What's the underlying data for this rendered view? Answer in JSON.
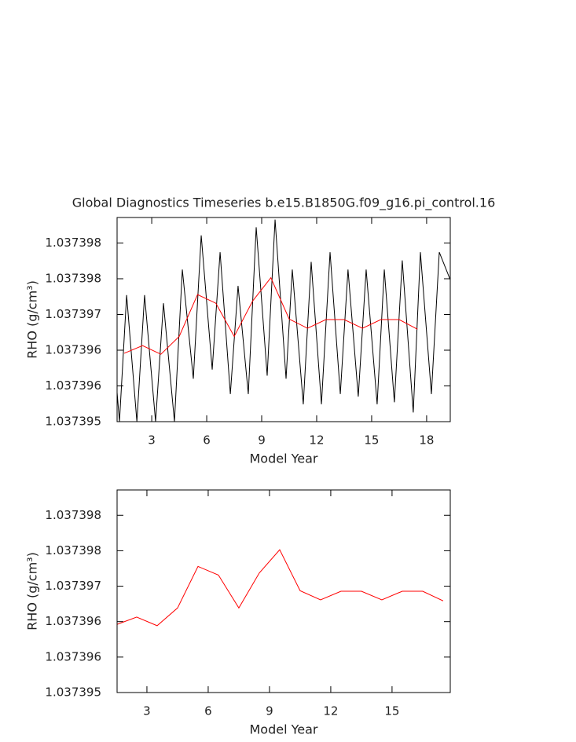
{
  "chart_data": [
    {
      "type": "line",
      "title": "Global Diagnostics Timeseries b.e15.B1850G.f09_g16.pi_control.16",
      "xlabel": "Model Year",
      "ylabel": "RHO (g/cm³)",
      "xlim": [
        1.11,
        19.29
      ],
      "ylim": [
        1.037395,
        1.037399
      ],
      "xticks": [
        3,
        6,
        9,
        12,
        15,
        18
      ],
      "yticks": [
        {
          "value": 1.037395,
          "label": "1.037395"
        },
        {
          "value": 1.0373957,
          "label": "1.037396"
        },
        {
          "value": 1.0373964,
          "label": "1.037396"
        },
        {
          "value": 1.0373971,
          "label": "1.037397"
        },
        {
          "value": 1.0373978,
          "label": "1.037398"
        },
        {
          "value": 1.0373985,
          "label": "1.037398"
        }
      ],
      "series": [
        {
          "color": "#000000",
          "x": [
            1.11,
            1.24,
            1.63,
            2.19,
            2.61,
            3.21,
            3.64,
            4.24,
            4.67,
            5.27,
            5.7,
            6.3,
            6.73,
            7.29,
            7.71,
            8.27,
            8.7,
            9.3,
            9.73,
            10.33,
            10.67,
            11.27,
            11.7,
            12.26,
            12.73,
            13.29,
            13.71,
            14.27,
            14.7,
            15.3,
            15.69,
            16.24,
            16.67,
            17.27,
            17.66,
            18.26,
            18.69,
            19.29
          ],
          "values": [
            1.03739557,
            1.037395,
            1.03739748,
            1.037395,
            1.03739748,
            1.037395,
            1.03739732,
            1.037395,
            1.03739798,
            1.03739584,
            1.03739865,
            1.03739602,
            1.03739832,
            1.03739554,
            1.03739766,
            1.03739554,
            1.03739881,
            1.0373959,
            1.03739896,
            1.03739584,
            1.03739798,
            1.03739534,
            1.03739813,
            1.03739534,
            1.03739832,
            1.03739554,
            1.03739798,
            1.03739549,
            1.03739798,
            1.03739534,
            1.03739798,
            1.03739538,
            1.03739816,
            1.03739518,
            1.03739832,
            1.03739554,
            1.03739832,
            1.03739778
          ]
        },
        {
          "color": "#ff0000",
          "x": [
            1.5,
            2.5,
            3.5,
            4.5,
            5.5,
            6.5,
            7.5,
            8.5,
            9.5,
            10.5,
            11.5,
            12.5,
            13.5,
            14.5,
            15.5,
            16.5,
            17.5
          ],
          "values": [
            1.03739634,
            1.03739649,
            1.03739632,
            1.03739667,
            1.03739749,
            1.03739732,
            1.03739667,
            1.03739736,
            1.03739782,
            1.03739701,
            1.03739683,
            1.037397,
            1.037397,
            1.03739683,
            1.037397,
            1.037397,
            1.03739681
          ]
        }
      ]
    },
    {
      "type": "line",
      "xlabel": "Model Year",
      "ylabel": "RHO (g/cm³)",
      "xlim": [
        1.54,
        17.85
      ],
      "ylim": [
        1.037395,
        1.037399
      ],
      "xticks": [
        3,
        6,
        9,
        12,
        15
      ],
      "yticks": [
        {
          "value": 1.037395,
          "label": "1.037395"
        },
        {
          "value": 1.0373957,
          "label": "1.037396"
        },
        {
          "value": 1.0373964,
          "label": "1.037396"
        },
        {
          "value": 1.0373971,
          "label": "1.037397"
        },
        {
          "value": 1.0373978,
          "label": "1.037398"
        },
        {
          "value": 1.0373985,
          "label": "1.037398"
        }
      ],
      "series": [
        {
          "color": "#ff0000",
          "x": [
            1.5,
            2.5,
            3.5,
            4.5,
            5.5,
            6.5,
            7.5,
            8.5,
            9.5,
            10.5,
            11.5,
            12.5,
            13.5,
            14.5,
            15.5,
            16.5,
            17.5
          ],
          "values": [
            1.03739634,
            1.03739649,
            1.03739632,
            1.03739667,
            1.03739749,
            1.03739732,
            1.03739667,
            1.03739736,
            1.03739782,
            1.03739701,
            1.03739683,
            1.037397,
            1.037397,
            1.03739683,
            1.037397,
            1.037397,
            1.03739681
          ]
        }
      ]
    }
  ]
}
